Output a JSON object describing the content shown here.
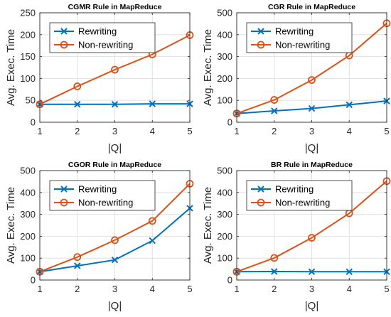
{
  "chart_data": [
    {
      "type": "line",
      "title": "CGMR Rule in MapReduce",
      "xlabel": "|Q|",
      "ylabel": "Avg. Exec. Time",
      "x": [
        1,
        2,
        3,
        4,
        5
      ],
      "xticks": [
        "1",
        "2",
        "3",
        "4",
        "5"
      ],
      "ylim": [
        0,
        250
      ],
      "yticks": [
        0,
        50,
        100,
        150,
        200,
        250
      ],
      "grid": true,
      "legend": "top-left",
      "series": [
        {
          "name": "Rewriting",
          "values": [
            41,
            41,
            41,
            42,
            42
          ],
          "color": "#0072BD",
          "marker": "x"
        },
        {
          "name": "Non-rewriting",
          "values": [
            41,
            82,
            120,
            155,
            199
          ],
          "color": "#D95319",
          "marker": "o"
        }
      ]
    },
    {
      "type": "line",
      "title": "CGR Rule in MapReduce",
      "xlabel": "|Q|",
      "ylabel": "Avg. Exec. Time",
      "x": [
        1,
        2,
        3,
        4,
        5
      ],
      "xticks": [
        "1",
        "2",
        "3",
        "4",
        "5"
      ],
      "ylim": [
        0,
        500
      ],
      "yticks": [
        0,
        100,
        200,
        300,
        400,
        500
      ],
      "grid": true,
      "legend": "top-left",
      "series": [
        {
          "name": "Rewriting",
          "values": [
            40,
            52,
            63,
            80,
            97
          ],
          "color": "#0072BD",
          "marker": "x"
        },
        {
          "name": "Non-rewriting",
          "values": [
            40,
            102,
            193,
            305,
            452
          ],
          "color": "#D95319",
          "marker": "o"
        }
      ]
    },
    {
      "type": "line",
      "title": "CGOR Rule in MapReduce",
      "xlabel": "|Q|",
      "ylabel": "Avg. Exec. Time",
      "x": [
        1,
        2,
        3,
        4,
        5
      ],
      "xticks": [
        "1",
        "2",
        "3",
        "4",
        "5"
      ],
      "ylim": [
        0,
        500
      ],
      "yticks": [
        0,
        100,
        200,
        300,
        400,
        500
      ],
      "grid": true,
      "legend": "top-left",
      "series": [
        {
          "name": "Rewriting",
          "values": [
            38,
            65,
            92,
            180,
            328
          ],
          "color": "#0072BD",
          "marker": "x"
        },
        {
          "name": "Non-rewriting",
          "values": [
            38,
            105,
            182,
            270,
            440
          ],
          "color": "#D95319",
          "marker": "o"
        }
      ]
    },
    {
      "type": "line",
      "title": "BR Rule in MapReduce",
      "xlabel": "|Q|",
      "ylabel": "Avg. Exec. Time",
      "x": [
        1,
        2,
        3,
        4,
        5
      ],
      "xticks": [
        "1",
        "2",
        "3",
        "4",
        "5"
      ],
      "ylim": [
        0,
        500
      ],
      "yticks": [
        0,
        100,
        200,
        300,
        400,
        500
      ],
      "grid": true,
      "legend": "top-left",
      "series": [
        {
          "name": "Rewriting",
          "values": [
            38,
            39,
            38,
            38,
            38
          ],
          "color": "#0072BD",
          "marker": "x"
        },
        {
          "name": "Non-rewriting",
          "values": [
            38,
            101,
            193,
            305,
            452
          ],
          "color": "#D95319",
          "marker": "o"
        }
      ]
    }
  ]
}
